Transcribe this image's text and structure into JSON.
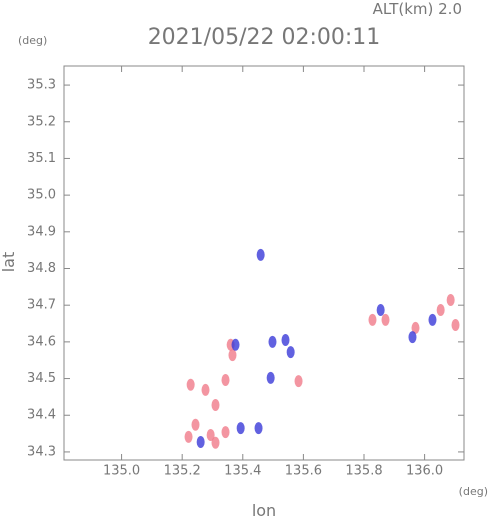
{
  "chart_data": {
    "type": "scatter",
    "title": "2021/05/22 02:00:11",
    "annotation": "ALT(km) 2.0",
    "y_unit": "(deg)",
    "x_unit": "(deg)",
    "ylabel": "lat",
    "xlabel": "lon",
    "xlim": [
      134.81,
      136.13
    ],
    "ylim": [
      34.278,
      35.352
    ],
    "xticks": [
      {
        "value": 135,
        "label": "135.0"
      },
      135.2,
      135.4,
      135.6,
      135.8,
      {
        "value": 136,
        "label": "136.0"
      }
    ],
    "yticks": [
      34.3,
      34.4,
      34.5,
      34.6,
      34.7,
      34.8,
      34.9,
      {
        "value": 35,
        "label": "35.0"
      },
      35.1,
      35.2,
      35.3
    ],
    "series": [
      {
        "color": "#f07a8a",
        "x": [
          135.228,
          135.277,
          135.31,
          135.343,
          135.366,
          135.36,
          135.244,
          135.221,
          135.294,
          135.343,
          135.31,
          136.053,
          136.086,
          136.102,
          135.828,
          135.871,
          135.97,
          135.584
        ],
        "values": [
          34.483,
          34.469,
          34.428,
          34.496,
          34.564,
          34.592,
          34.374,
          34.341,
          34.346,
          34.354,
          34.325,
          34.687,
          34.714,
          34.646,
          34.66,
          34.66,
          34.638,
          34.493
        ]
      },
      {
        "color": "#3a3ad8",
        "x": [
          135.459,
          135.498,
          135.541,
          135.558,
          135.492,
          135.393,
          135.452,
          135.855,
          135.96,
          136.026,
          135.376,
          135.261
        ],
        "values": [
          34.837,
          34.6,
          34.605,
          34.572,
          34.502,
          34.365,
          34.365,
          34.687,
          34.613,
          34.66,
          34.592,
          34.327
        ]
      }
    ]
  }
}
